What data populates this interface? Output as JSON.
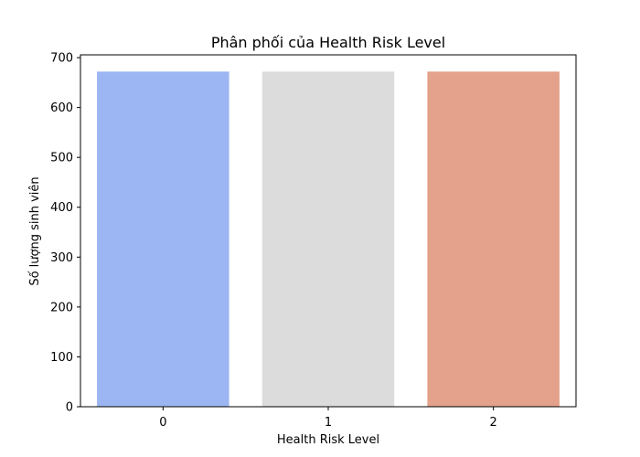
{
  "chart_data": {
    "type": "bar",
    "title": "Phân phối của Health Risk Level",
    "xlabel": "Health Risk Level",
    "ylabel": "Số lượng sinh viên",
    "categories": [
      "0",
      "1",
      "2"
    ],
    "values": [
      672,
      672,
      672
    ],
    "colors": [
      "#9bb6f2",
      "#dcdcdc",
      "#e4a18b"
    ],
    "ylim": [
      0,
      705.6
    ],
    "yticks": [
      0,
      100,
      200,
      300,
      400,
      500,
      600,
      700
    ],
    "grid": false,
    "legend": "none"
  }
}
